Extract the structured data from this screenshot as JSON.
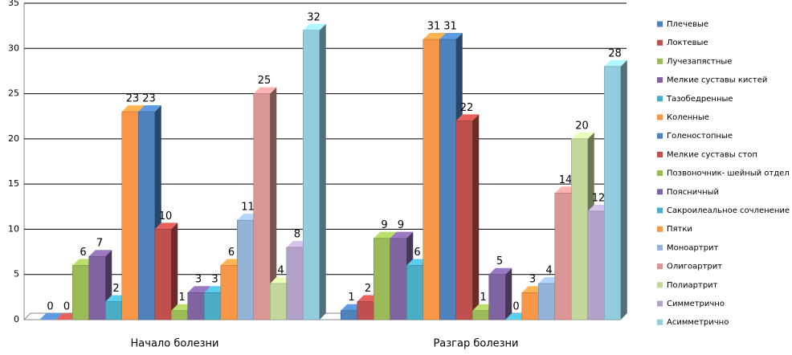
{
  "chart_data": {
    "type": "bar",
    "categories": [
      "Начало болезни",
      "Разгар болезни"
    ],
    "series": [
      {
        "name": "Плечевые",
        "color": "#4f81bd",
        "values": [
          0,
          1
        ]
      },
      {
        "name": "Локтевые",
        "color": "#c0504d",
        "values": [
          0,
          2
        ]
      },
      {
        "name": "Лучезапястные",
        "color": "#9bbb59",
        "values": [
          6,
          9
        ]
      },
      {
        "name": "Мелкие суставы кистей",
        "color": "#8064a2",
        "values": [
          7,
          9
        ]
      },
      {
        "name": "Тазобедренные",
        "color": "#4bacc6",
        "values": [
          2,
          6
        ]
      },
      {
        "name": "Коленные",
        "color": "#f79646",
        "values": [
          23,
          31
        ]
      },
      {
        "name": "Голеностопные",
        "color": "#4f81bd",
        "values": [
          23,
          31
        ]
      },
      {
        "name": "Мелкие суставы стоп",
        "color": "#c0504d",
        "values": [
          10,
          22
        ]
      },
      {
        "name": "Позвоночник- шейный отдел",
        "color": "#9bbb59",
        "values": [
          1,
          1
        ]
      },
      {
        "name": "Поясничный",
        "color": "#8064a2",
        "values": [
          3,
          5
        ]
      },
      {
        "name": "Сакроилеальное сочленение",
        "color": "#4bacc6",
        "values": [
          3,
          0
        ]
      },
      {
        "name": "Пятки",
        "color": "#f79646",
        "values": [
          6,
          3
        ]
      },
      {
        "name": "Моноартрит",
        "color": "#95b3d7",
        "values": [
          11,
          4
        ]
      },
      {
        "name": "Олигоартрит",
        "color": "#d99694",
        "values": [
          25,
          14
        ]
      },
      {
        "name": "Полиартрит",
        "color": "#c3d69b",
        "values": [
          4,
          20
        ]
      },
      {
        "name": "Симметрично",
        "color": "#b3a2c7",
        "values": [
          8,
          12
        ]
      },
      {
        "name": "Асимметрично",
        "color": "#93cddd",
        "values": [
          32,
          28
        ]
      }
    ],
    "ylim": [
      0,
      35
    ],
    "yticks": [
      0,
      5,
      10,
      15,
      20,
      25,
      30,
      35
    ],
    "grid": true,
    "legend": "right"
  }
}
